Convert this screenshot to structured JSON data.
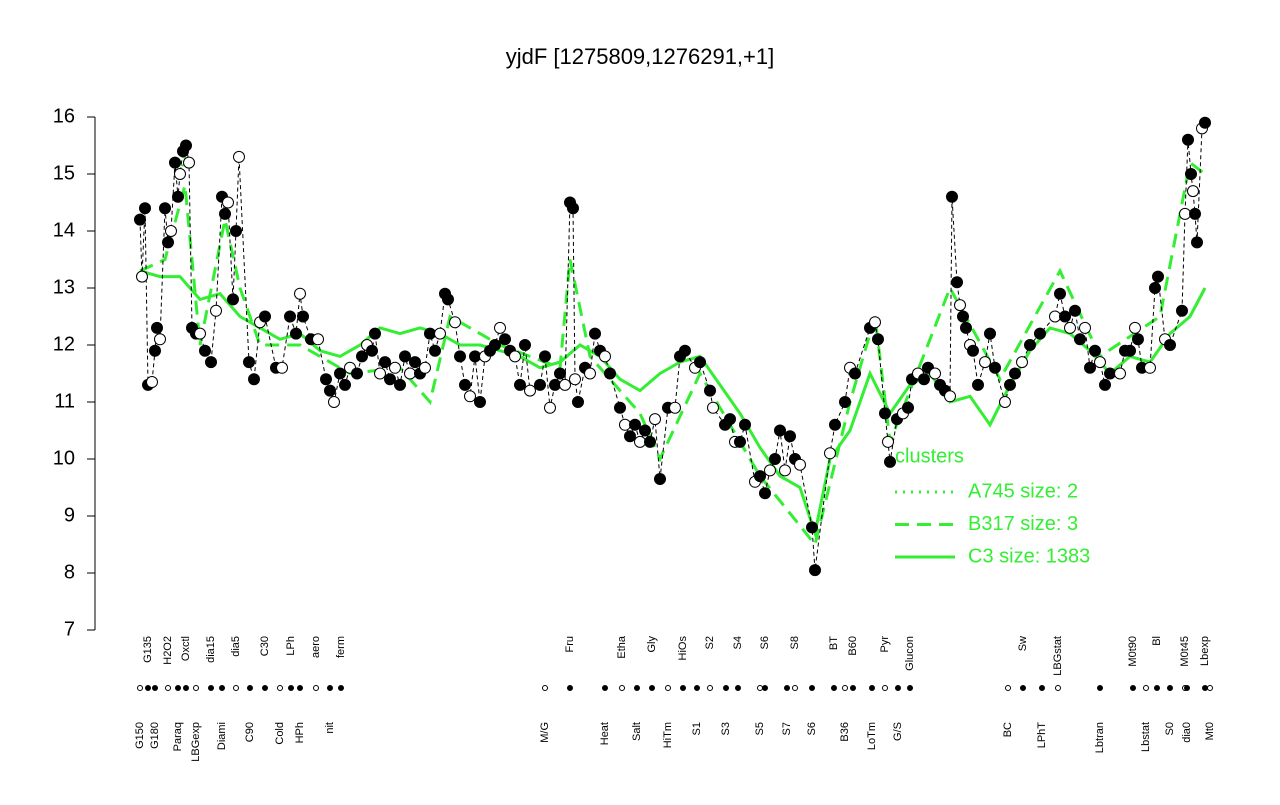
{
  "chart_data": {
    "type": "line",
    "title": "yjdF [1275809,1276291,+1]",
    "ylim": [
      7,
      16
    ],
    "yticks": [
      7,
      8,
      9,
      10,
      11,
      12,
      13,
      14,
      15,
      16
    ],
    "xlim": [
      0,
      1120
    ],
    "xticks": [
      {
        "value": 45,
        "label": "G150"
      },
      {
        "value": 53,
        "label": "G135"
      },
      {
        "value": 60,
        "label": "G180"
      },
      {
        "value": 73,
        "label": "H2O2"
      },
      {
        "value": 83,
        "label": "Paraq"
      },
      {
        "value": 91,
        "label": "Oxctl"
      },
      {
        "value": 101,
        "label": "LBGexp"
      },
      {
        "value": 116,
        "label": "dia15"
      },
      {
        "value": 127,
        "label": "Diami"
      },
      {
        "value": 141,
        "label": "dia5"
      },
      {
        "value": 155,
        "label": "C90"
      },
      {
        "value": 170,
        "label": "C30"
      },
      {
        "value": 185,
        "label": "Cold"
      },
      {
        "value": 196,
        "label": "LPh"
      },
      {
        "value": 205,
        "label": "HPh"
      },
      {
        "value": 221,
        "label": "aero"
      },
      {
        "value": 235,
        "label": "nit"
      },
      {
        "value": 246,
        "label": "ferm"
      },
      {
        "value": 450,
        "label": "M/G"
      },
      {
        "value": 475,
        "label": "Fru"
      },
      {
        "value": 510,
        "label": "Heat"
      },
      {
        "value": 527,
        "label": "Etha"
      },
      {
        "value": 542,
        "label": "Salt"
      },
      {
        "value": 557,
        "label": "Gly"
      },
      {
        "value": 573,
        "label": "HiTm"
      },
      {
        "value": 588,
        "label": "HiOs"
      },
      {
        "value": 602,
        "label": "S1"
      },
      {
        "value": 615,
        "label": "S2"
      },
      {
        "value": 631,
        "label": "S3"
      },
      {
        "value": 643,
        "label": "S4"
      },
      {
        "value": 665,
        "label": "S5"
      },
      {
        "value": 670,
        "label": "S6"
      },
      {
        "value": 692,
        "label": "S7"
      },
      {
        "value": 700,
        "label": "S8"
      },
      {
        "value": 717,
        "label": "S6"
      },
      {
        "value": 739,
        "label": "BT"
      },
      {
        "value": 750,
        "label": "B36"
      },
      {
        "value": 758,
        "label": "B60"
      },
      {
        "value": 777,
        "label": "LoTm"
      },
      {
        "value": 790,
        "label": "Pyr"
      },
      {
        "value": 803,
        "label": "G/S"
      },
      {
        "value": 815,
        "label": "Glucon"
      },
      {
        "value": 913,
        "label": "BC"
      },
      {
        "value": 928,
        "label": "Sw"
      },
      {
        "value": 947,
        "label": "LPhT"
      },
      {
        "value": 963,
        "label": "LBGstat"
      },
      {
        "value": 1005,
        "label": "Lbtran"
      },
      {
        "value": 1038,
        "label": "M0t90"
      },
      {
        "value": 1051,
        "label": "Lbstat"
      },
      {
        "value": 1062,
        "label": "Bl"
      },
      {
        "value": 1075,
        "label": "S0"
      },
      {
        "value": 1090,
        "label": "M0t45"
      },
      {
        "value": 1092,
        "label": "dia0"
      },
      {
        "value": 1110,
        "label": "Lbexp"
      },
      {
        "value": 1115,
        "label": "Mt0"
      }
    ],
    "points": {
      "color": "#000000",
      "x": [
        45,
        47,
        50,
        53,
        57,
        60,
        62,
        65,
        70,
        73,
        76,
        80,
        83,
        85,
        88,
        91,
        94,
        97,
        101,
        105,
        110,
        116,
        121,
        127,
        130,
        133,
        138,
        141,
        144,
        154,
        159,
        165,
        170,
        181,
        187,
        195,
        201,
        205,
        208,
        216,
        223,
        231,
        235,
        239,
        245,
        250,
        255,
        262,
        267,
        272,
        277,
        280,
        285,
        290,
        295,
        300,
        305,
        310,
        315,
        320,
        325,
        330,
        335,
        340,
        345,
        350,
        353,
        360,
        365,
        370,
        375,
        380,
        385,
        390,
        395,
        400,
        405,
        410,
        415,
        420,
        425,
        430,
        435,
        445,
        450,
        455,
        460,
        465,
        470,
        475,
        478,
        480,
        483,
        490,
        495,
        500,
        505,
        510,
        515,
        525,
        530,
        535,
        540,
        545,
        550,
        555,
        560,
        565,
        573,
        580,
        585,
        590,
        600,
        605,
        615,
        618,
        630,
        635,
        640,
        645,
        650,
        660,
        665,
        670,
        675,
        680,
        685,
        690,
        695,
        700,
        705,
        717,
        720,
        735,
        740,
        750,
        755,
        760,
        775,
        780,
        783,
        790,
        793,
        795,
        802,
        808,
        813,
        817,
        823,
        829,
        833,
        840,
        845,
        850,
        855,
        857,
        862,
        865,
        868,
        871,
        875,
        878,
        883,
        890,
        895,
        900,
        910,
        915,
        920,
        927,
        935,
        945,
        960,
        965,
        970,
        975,
        980,
        985,
        990,
        995,
        1000,
        1005,
        1010,
        1015,
        1025,
        1030,
        1035,
        1040,
        1043,
        1047,
        1055,
        1060,
        1063,
        1070,
        1075,
        1087,
        1090,
        1093,
        1096,
        1098,
        1100,
        1102,
        1107,
        1110
      ],
      "values": [
        14.2,
        13.2,
        14.4,
        11.3,
        11.35,
        11.9,
        12.3,
        12.1,
        14.4,
        13.8,
        14.0,
        15.2,
        14.6,
        15.0,
        15.4,
        15.5,
        15.2,
        12.3,
        12.2,
        12.2,
        11.9,
        11.7,
        12.6,
        14.6,
        14.3,
        14.5,
        12.8,
        14.0,
        15.3,
        11.7,
        11.4,
        12.4,
        12.5,
        11.6,
        11.6,
        12.5,
        12.2,
        12.9,
        12.5,
        12.1,
        12.1,
        11.4,
        11.2,
        11.0,
        11.5,
        11.3,
        11.6,
        11.5,
        11.8,
        12.0,
        11.9,
        12.2,
        11.5,
        11.7,
        11.4,
        11.6,
        11.3,
        11.8,
        11.5,
        11.7,
        11.5,
        11.6,
        12.2,
        11.9,
        12.2,
        12.9,
        12.8,
        12.4,
        11.8,
        11.3,
        11.1,
        11.8,
        11.0,
        11.8,
        11.9,
        12.0,
        12.3,
        12.1,
        11.9,
        11.8,
        11.3,
        12.0,
        11.2,
        11.3,
        11.8,
        10.9,
        11.3,
        11.5,
        11.3,
        14.5,
        14.4,
        11.4,
        11.0,
        11.6,
        11.5,
        12.2,
        11.9,
        11.8,
        11.5,
        10.9,
        10.6,
        10.4,
        10.6,
        10.3,
        10.5,
        10.3,
        10.7,
        9.65,
        10.9,
        10.9,
        11.8,
        11.9,
        11.6,
        11.7,
        11.2,
        10.9,
        10.6,
        10.7,
        10.3,
        10.3,
        10.6,
        9.6,
        9.7,
        9.4,
        9.8,
        10.0,
        10.5,
        9.8,
        10.4,
        10.0,
        9.9,
        8.8,
        8.05,
        10.1,
        10.6,
        11.0,
        11.6,
        11.5,
        12.3,
        12.4,
        12.1,
        10.8,
        10.3,
        9.95,
        10.7,
        10.8,
        10.9,
        11.4,
        11.5,
        11.4,
        11.6,
        11.5,
        11.3,
        11.2,
        11.1,
        14.6,
        13.1,
        12.7,
        12.5,
        12.3,
        12.0,
        11.9,
        11.3,
        11.7,
        12.2,
        11.6,
        11.0,
        11.3,
        11.5,
        11.7,
        12.0,
        12.2,
        12.5,
        12.9,
        12.5,
        12.3,
        12.6,
        12.1,
        12.3,
        11.6,
        11.9,
        11.7,
        11.3,
        11.5,
        11.5,
        11.9,
        11.9,
        12.3,
        12.1,
        11.6,
        11.6,
        13.0,
        13.2,
        12.1,
        12.0,
        12.6,
        14.3,
        15.6,
        15.0,
        14.7,
        14.3,
        13.8,
        15.8,
        15.9
      ]
    },
    "legend_title": "clusters",
    "series": [
      {
        "name": "A745 size: 2",
        "color": "#33ee33",
        "style": "dotted",
        "x": [
          85,
          91
        ],
        "values": [
          15.0,
          15.4
        ]
      },
      {
        "name": "B317 size: 3",
        "color": "#33ee33",
        "style": "dashed",
        "x": [
          45,
          70,
          90,
          105,
          130,
          145,
          165,
          205,
          255,
          305,
          335,
          355,
          405,
          465,
          475,
          495,
          545,
          565,
          605,
          665,
          720,
          755,
          780,
          795,
          855,
          905,
          965,
          1005,
          1065,
          1095,
          1110
        ],
        "values": [
          13.3,
          13.5,
          14.8,
          12.0,
          14.2,
          13.0,
          12.0,
          12.0,
          11.5,
          11.6,
          11.0,
          12.5,
          12.0,
          11.6,
          13.5,
          11.8,
          10.8,
          10.0,
          11.5,
          9.7,
          8.5,
          11.0,
          12.5,
          10.3,
          13.0,
          11.4,
          13.3,
          11.8,
          12.5,
          15.2,
          15.0
        ]
      },
      {
        "name": "C3 size: 1383",
        "color": "#33ee33",
        "style": "solid",
        "x": [
          45,
          65,
          85,
          105,
          125,
          145,
          165,
          185,
          205,
          225,
          245,
          265,
          285,
          305,
          325,
          345,
          365,
          385,
          405,
          425,
          445,
          465,
          485,
          505,
          525,
          545,
          565,
          585,
          605,
          625,
          645,
          665,
          685,
          705,
          720,
          735,
          755,
          775,
          795,
          815,
          835,
          855,
          875,
          895,
          915,
          935,
          955,
          975,
          995,
          1015,
          1035,
          1055,
          1075,
          1095,
          1110
        ],
        "values": [
          13.3,
          13.2,
          13.2,
          12.8,
          12.9,
          12.5,
          12.3,
          12.1,
          12.2,
          11.9,
          11.8,
          12.0,
          12.3,
          12.2,
          12.3,
          12.2,
          12.0,
          12.0,
          11.9,
          11.8,
          11.6,
          11.7,
          12.0,
          11.8,
          11.4,
          11.2,
          11.5,
          11.7,
          11.8,
          11.3,
          10.8,
          10.2,
          9.7,
          9.5,
          8.7,
          10.0,
          10.5,
          11.5,
          10.8,
          11.3,
          11.5,
          11.0,
          11.1,
          10.6,
          11.3,
          11.9,
          12.3,
          12.2,
          11.9,
          11.5,
          11.8,
          11.7,
          12.2,
          12.5,
          13.0
        ]
      }
    ]
  }
}
